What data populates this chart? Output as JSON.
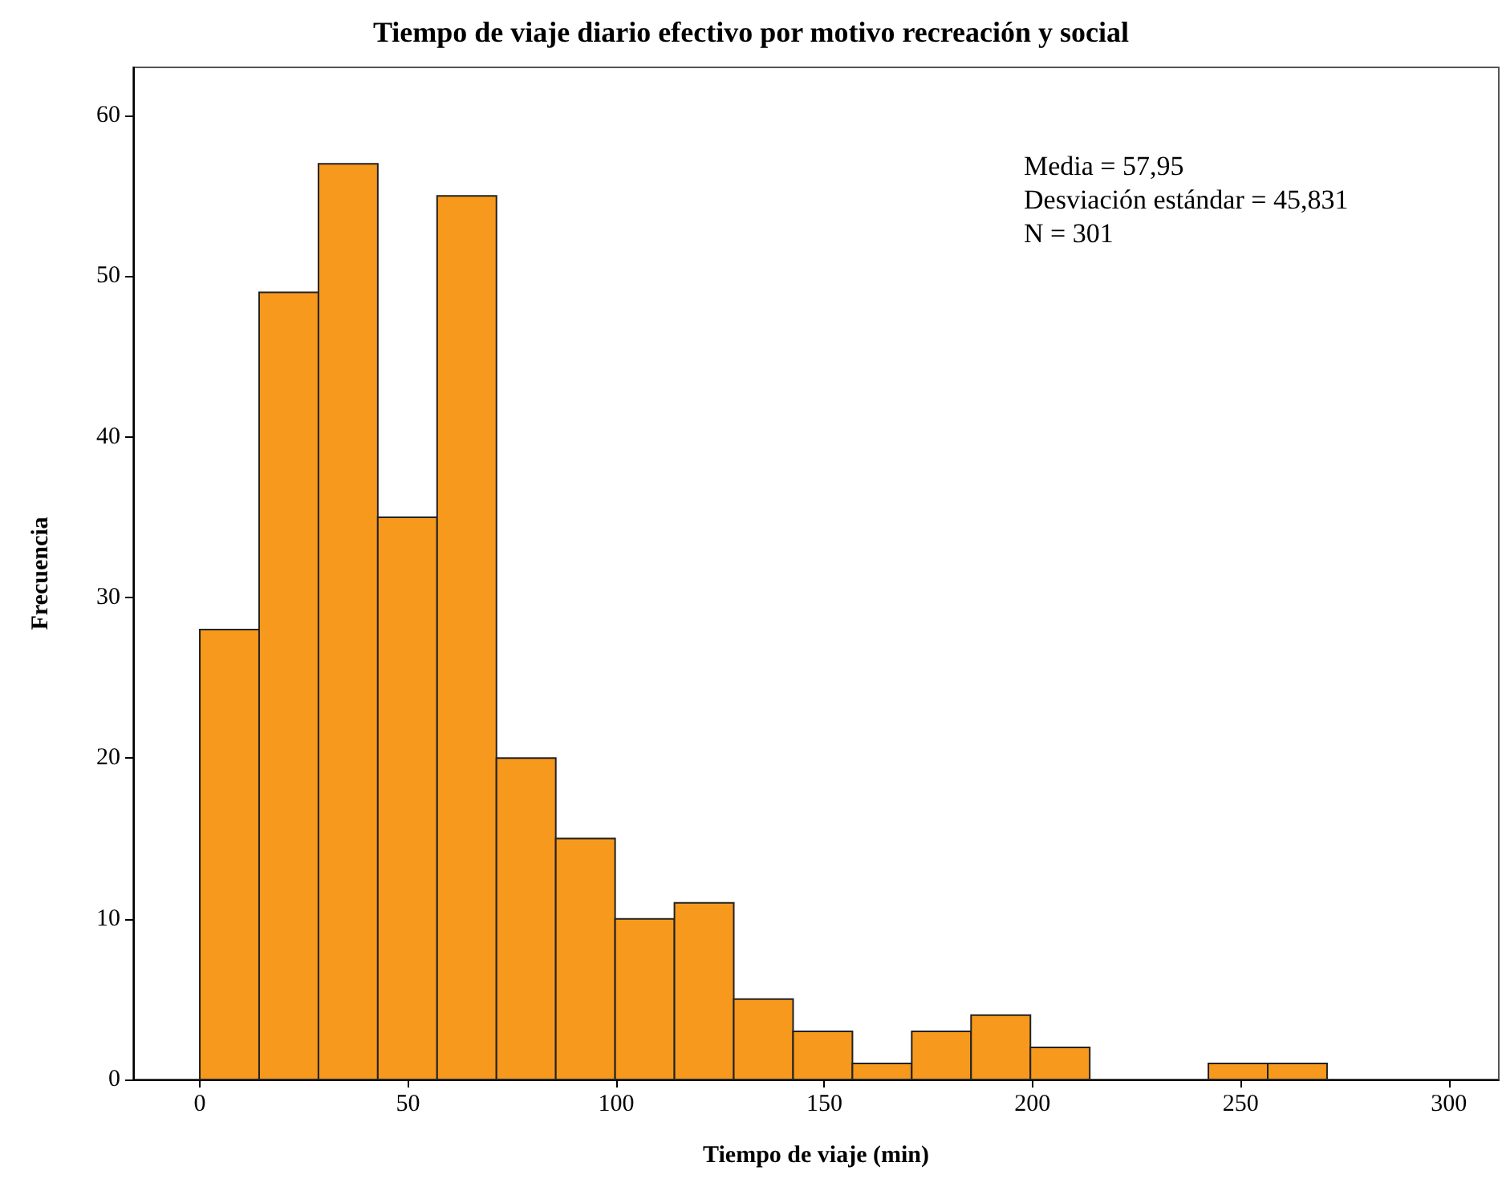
{
  "chart_data": {
    "type": "histogram",
    "title": "Tiempo de viaje diario efectivo por motivo recreación y social",
    "xlabel": "Tiempo de viaje (min)",
    "ylabel": "Frecuencia",
    "bins": [
      0,
      14.25,
      28.5,
      42.75,
      57,
      71.25,
      85.5,
      99.75,
      114,
      128.25,
      142.5,
      156.75,
      171,
      185.25,
      199.5,
      213.75,
      228,
      242.25,
      256.5,
      270.75
    ],
    "values": [
      28,
      49,
      57,
      35,
      55,
      20,
      15,
      10,
      11,
      5,
      3,
      1,
      3,
      4,
      2,
      0,
      0,
      1,
      1
    ],
    "color": "#f7991c",
    "xlim": [
      -16,
      312
    ],
    "xticks": [
      0,
      50,
      100,
      150,
      200,
      250,
      300
    ],
    "ylim": [
      0,
      63
    ],
    "yticks": [
      0,
      10,
      20,
      30,
      40,
      50,
      60
    ],
    "grid": false,
    "annotations": [
      "Media = 57,95",
      "Desviación estándar = 45,831",
      "N = 301"
    ]
  }
}
